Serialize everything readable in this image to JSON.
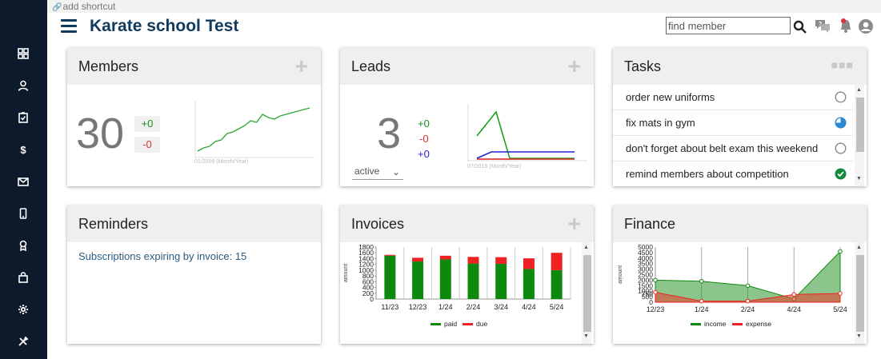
{
  "shortcut": {
    "label": "add shortcut"
  },
  "header": {
    "title": "Karate school Test",
    "search_placeholder": "find member"
  },
  "sidebar": {
    "items": [
      {
        "icon": "dashboard-icon"
      },
      {
        "icon": "member-icon"
      },
      {
        "icon": "clipboard-check-icon"
      },
      {
        "icon": "dollar-icon"
      },
      {
        "icon": "mail-icon"
      },
      {
        "icon": "mobile-icon"
      },
      {
        "icon": "award-icon"
      },
      {
        "icon": "shop-bag-icon"
      },
      {
        "icon": "gear-icon"
      },
      {
        "icon": "tools-icon"
      }
    ]
  },
  "members": {
    "title": "Members",
    "count": "30",
    "plus_delta": "+0",
    "minus_delta": "-0",
    "chart_label": "01/2009 (Month/Year)",
    "trend": [
      1,
      3,
      4,
      7,
      8,
      12,
      13,
      15,
      17,
      20,
      19,
      24,
      22,
      21,
      23,
      24,
      25,
      26,
      27,
      28
    ]
  },
  "leads": {
    "title": "Leads",
    "count": "3",
    "plus_delta": "+0",
    "minus_delta": "-0",
    "blue_delta": "+0",
    "status_select": "active",
    "chart_label": "07/2018 (Month/Year)"
  },
  "tasks": {
    "title": "Tasks",
    "items": [
      {
        "label": "order new uniforms",
        "status": "open"
      },
      {
        "label": "fix mats in gym",
        "status": "in-progress"
      },
      {
        "label": "don't forget about belt exam this weekend",
        "status": "open"
      },
      {
        "label": "remind members about competition",
        "status": "done"
      }
    ]
  },
  "reminders": {
    "title": "Reminders",
    "subscriptions_text": "Subscriptions expiring by invoice: 15"
  },
  "invoices": {
    "title": "Invoices",
    "chart_data": {
      "type": "bar",
      "stacked": true,
      "ylabel": "amount",
      "categories": [
        "11/23",
        "12/23",
        "1/24",
        "2/24",
        "3/24",
        "4/24",
        "5/24"
      ],
      "yticks": [
        0,
        200,
        400,
        600,
        800,
        1000,
        1200,
        1400,
        1600,
        1800
      ],
      "ylim": [
        0,
        1800
      ],
      "series": [
        {
          "name": "paid",
          "color": "#0d8a0d",
          "values": [
            1500,
            1300,
            1370,
            1230,
            1220,
            1040,
            1000
          ]
        },
        {
          "name": "due",
          "color": "#ee2222",
          "values": [
            30,
            130,
            130,
            230,
            230,
            370,
            600
          ]
        }
      ],
      "legend": "bottom"
    }
  },
  "finance": {
    "title": "Finance",
    "chart_data": {
      "type": "area",
      "ylabel": "amount",
      "categories": [
        "12/23",
        "1/24",
        "2/24",
        "4/24",
        "5/24"
      ],
      "yticks": [
        0,
        500,
        750,
        1000,
        1500,
        2000,
        2500,
        3000,
        3500,
        4000,
        4500,
        5000
      ],
      "ytick_labels": [
        "0",
        "500",
        "750",
        "1000",
        "1500",
        "2000",
        "2500",
        "3000",
        "3500",
        "4000",
        "4500",
        "5000"
      ],
      "ylim": [
        0,
        5000
      ],
      "series": [
        {
          "name": "income",
          "color": "#0d8a0d",
          "values": [
            2000,
            1900,
            1500,
            300,
            4600
          ]
        },
        {
          "name": "expense",
          "color": "#ee2222",
          "values": [
            900,
            100,
            100,
            700,
            800
          ]
        }
      ],
      "legend": "bottom"
    }
  }
}
